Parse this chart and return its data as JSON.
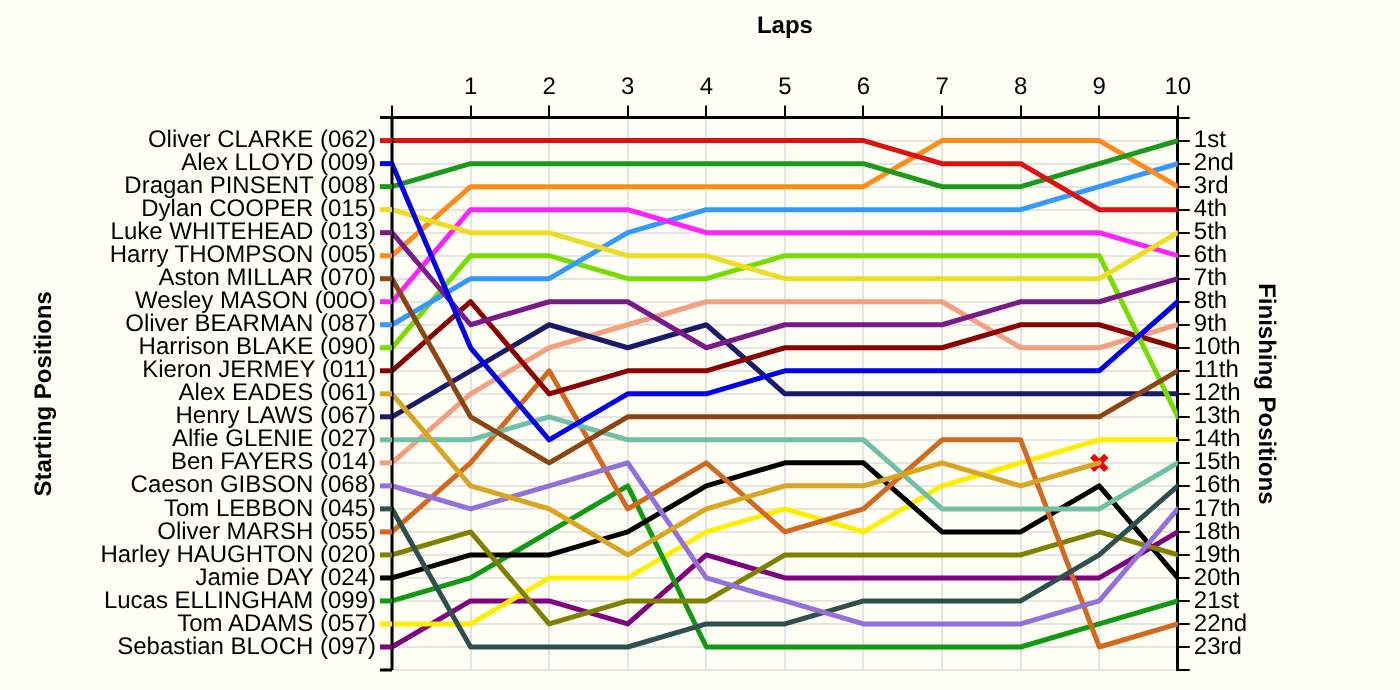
{
  "chart_data": {
    "type": "line",
    "xlabel": "Laps",
    "ylabel": "Finishing Positions",
    "x": [
      0,
      1,
      2,
      3,
      4,
      5,
      6,
      7,
      8,
      9,
      10
    ],
    "xlim": [
      0,
      10
    ],
    "xticks": [
      {
        "value": 0,
        "label": null
      },
      1,
      2,
      3,
      4,
      5,
      6,
      7,
      8,
      9,
      10
    ],
    "ylim": [
      24,
      0
    ],
    "yticks": [
      {
        "value": 0,
        "label": null
      },
      {
        "value": 1,
        "label": "1st"
      },
      {
        "value": 2,
        "label": "2nd"
      },
      {
        "value": 3,
        "label": "3rd"
      },
      {
        "value": 4,
        "label": "4th"
      },
      {
        "value": 5,
        "label": "5th"
      },
      {
        "value": 6,
        "label": "6th"
      },
      {
        "value": 7,
        "label": "7th"
      },
      {
        "value": 8,
        "label": "8th"
      },
      {
        "value": 9,
        "label": "9th"
      },
      {
        "value": 10,
        "label": "10th"
      },
      {
        "value": 11,
        "label": "11th"
      },
      {
        "value": 12,
        "label": "12th"
      },
      {
        "value": 13,
        "label": "13th"
      },
      {
        "value": 14,
        "label": "14th"
      },
      {
        "value": 15,
        "label": "15th"
      },
      {
        "value": 16,
        "label": "16th"
      },
      {
        "value": 17,
        "label": "17th"
      },
      {
        "value": 18,
        "label": "18th"
      },
      {
        "value": 19,
        "label": "19th"
      },
      {
        "value": 20,
        "label": "20th"
      },
      {
        "value": 21,
        "label": "21st"
      },
      {
        "value": 22,
        "label": "22nd"
      },
      {
        "value": 23,
        "label": "23rd"
      },
      {
        "value": 24,
        "label": null
      }
    ],
    "annotations": [
      "Starting Positions"
    ],
    "grid": true,
    "legend": "left",
    "marker": "none",
    "line_style": "solid",
    "series": [
      {
        "name": "Oliver CLARKE (062)",
        "color": "#dd1111",
        "values": [
          1,
          1,
          1,
          1,
          1,
          1,
          1,
          2,
          2,
          4,
          4
        ]
      },
      {
        "name": "Alex LLOYD (009)",
        "color": "#0000ee",
        "values": [
          2,
          10,
          14,
          12,
          12,
          11,
          11,
          11,
          11,
          11,
          8
        ]
      },
      {
        "name": "Dragan PINSENT (008)",
        "color": "#1a9a1a",
        "values": [
          3,
          2,
          2,
          2,
          2,
          2,
          2,
          3,
          3,
          2,
          1
        ]
      },
      {
        "name": "Dylan COOPER (015)",
        "color": "#eedd22",
        "values": [
          4,
          5,
          5,
          6,
          6,
          7,
          7,
          7,
          7,
          7,
          5
        ]
      },
      {
        "name": "Luke WHITEHEAD (013)",
        "color": "#7a1a8a",
        "values": [
          5,
          9,
          8,
          8,
          10,
          9,
          9,
          9,
          8,
          8,
          7
        ]
      },
      {
        "name": "Harry THOMPSON (005)",
        "color": "#ff8c1a",
        "values": [
          6,
          3,
          3,
          3,
          3,
          3,
          3,
          1,
          1,
          1,
          3
        ]
      },
      {
        "name": "Aston MILLAR (070)",
        "color": "#8b4513",
        "values": [
          7,
          13,
          15,
          13,
          13,
          13,
          13,
          13,
          13,
          13,
          11
        ]
      },
      {
        "name": "Wesley MASON (00O)",
        "color": "#ff22ff",
        "values": [
          8,
          4,
          4,
          4,
          5,
          5,
          5,
          5,
          5,
          5,
          6
        ]
      },
      {
        "name": "Oliver BEARMAN (087)",
        "color": "#3399ff",
        "values": [
          9,
          7,
          7,
          5,
          4,
          4,
          4,
          4,
          4,
          3,
          2
        ]
      },
      {
        "name": "Harrison BLAKE (090)",
        "color": "#77dd00",
        "values": [
          10,
          6,
          6,
          7,
          7,
          6,
          6,
          6,
          6,
          6,
          13
        ]
      },
      {
        "name": "Kieron JERMEY (011)",
        "color": "#8b0000",
        "values": [
          11,
          8,
          12,
          11,
          11,
          10,
          10,
          10,
          9,
          9,
          10
        ]
      },
      {
        "name": "Alex EADES (061)",
        "color": "#daa520",
        "values": [
          12,
          16,
          17,
          19,
          17,
          16,
          16,
          15,
          16,
          15,
          null
        ]
      },
      {
        "name": "Henry LAWS (067)",
        "color": "#1a1a6a",
        "values": [
          13,
          11,
          9,
          10,
          9,
          12,
          12,
          12,
          12,
          12,
          12
        ]
      },
      {
        "name": "Alfie GLENIE (027)",
        "color": "#70c0a8",
        "values": [
          14,
          14,
          13,
          14,
          14,
          14,
          14,
          17,
          17,
          17,
          15
        ]
      },
      {
        "name": "Ben FAYERS (014)",
        "color": "#f4a080",
        "values": [
          15,
          12,
          10,
          9,
          8,
          8,
          8,
          8,
          10,
          10,
          9
        ]
      },
      {
        "name": "Caeson GIBSON (068)",
        "color": "#9370db",
        "values": [
          16,
          17,
          16,
          15,
          20,
          21,
          22,
          22,
          22,
          21,
          17
        ]
      },
      {
        "name": "Tom LEBBON (045)",
        "color": "#2f4f4f",
        "values": [
          17,
          23,
          23,
          23,
          22,
          22,
          21,
          21,
          21,
          19,
          16
        ]
      },
      {
        "name": "Oliver MARSH (055)",
        "color": "#d2691e",
        "values": [
          18,
          15,
          11,
          17,
          15,
          18,
          17,
          14,
          14,
          23,
          22
        ]
      },
      {
        "name": "Harley HAUGHTON (020)",
        "color": "#808000",
        "values": [
          19,
          18,
          22,
          21,
          21,
          19,
          19,
          19,
          19,
          18,
          19
        ]
      },
      {
        "name": "Jamie DAY (024)",
        "color": "#000000",
        "values": [
          20,
          19,
          19,
          18,
          16,
          15,
          15,
          18,
          18,
          16,
          20
        ]
      },
      {
        "name": "Lucas ELLINGHAM (099)",
        "color": "#119911",
        "values": [
          21,
          20,
          18,
          16,
          23,
          23,
          23,
          23,
          23,
          22,
          21
        ]
      },
      {
        "name": "Tom ADAMS (057)",
        "color": "#ffee00",
        "values": [
          22,
          22,
          20,
          20,
          18,
          17,
          18,
          16,
          15,
          14,
          14
        ]
      },
      {
        "name": "Sebastian BLOCH (097)",
        "color": "#800080",
        "values": [
          23,
          21,
          21,
          22,
          19,
          20,
          20,
          20,
          20,
          20,
          18
        ]
      },
      {
        "type": "scatter",
        "marker": "cross",
        "color": "#ee0000",
        "x": [
          9
        ],
        "values": [
          15
        ]
      }
    ]
  }
}
